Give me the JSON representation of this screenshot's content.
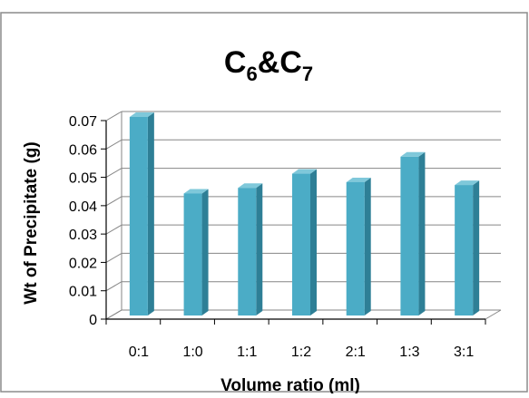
{
  "chart_data": {
    "type": "bar",
    "title_main": "C",
    "title_sub1": "6",
    "title_mid": "&C",
    "title_sub2": "7",
    "xlabel": "Volume ratio (ml)",
    "ylabel": "Wt of Precipitate (g)",
    "categories": [
      "0:1",
      "1:0",
      "1:1",
      "1:2",
      "2:1",
      "1:3",
      "3:1"
    ],
    "values": [
      0.07,
      0.043,
      0.045,
      0.05,
      0.047,
      0.056,
      0.046
    ],
    "ylim": [
      0,
      0.07
    ],
    "yticks": [
      "0",
      "0.01",
      "0.02",
      "0.03",
      "0.04",
      "0.05",
      "0.06",
      "0.07"
    ],
    "grid": true,
    "legend": "none",
    "colors": {
      "bar_front": "#4bacc6",
      "bar_side": "#2e7f96",
      "bar_top": "#7fc8da",
      "grid": "#868686",
      "frame": "#8c8c8c"
    }
  }
}
